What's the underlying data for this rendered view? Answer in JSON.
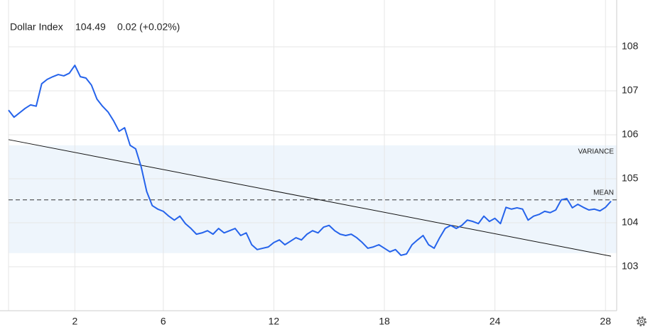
{
  "chart_data": {
    "type": "line",
    "title": "Dollar Index",
    "price": "104.49",
    "change": "0.02 (+0.02%)",
    "price_color": "#2962ff",
    "change_color": "#22ab3a",
    "color": "#2563eb",
    "categories": [
      null,
      null,
      null,
      null,
      null,
      null,
      null,
      null,
      null,
      null,
      null,
      null,
      "2",
      null,
      null,
      null,
      null,
      null,
      null,
      null,
      null,
      null,
      null,
      null,
      null,
      null,
      null,
      null,
      "6",
      null,
      null,
      null,
      null,
      null,
      null,
      null,
      null,
      null,
      null,
      null,
      null,
      null,
      null,
      null,
      null,
      null,
      null,
      null,
      "12",
      null,
      null,
      null,
      null,
      null,
      null,
      null,
      null,
      null,
      null,
      null,
      null,
      null,
      null,
      null,
      null,
      null,
      null,
      null,
      "18",
      null,
      null,
      null,
      null,
      null,
      null,
      null,
      null,
      null,
      null,
      null,
      null,
      null,
      null,
      null,
      null,
      null,
      null,
      null,
      "24",
      null,
      null,
      null,
      null,
      null,
      null,
      null,
      null,
      null,
      null,
      null,
      null,
      null,
      null,
      null,
      null,
      null,
      null,
      null,
      "28",
      null
    ],
    "values": [
      106.56,
      106.4,
      106.5,
      106.6,
      106.68,
      106.65,
      107.16,
      107.26,
      107.32,
      107.37,
      107.34,
      107.4,
      107.58,
      107.32,
      107.29,
      107.13,
      106.81,
      106.65,
      106.52,
      106.32,
      106.08,
      106.16,
      105.76,
      105.68,
      105.27,
      104.71,
      104.39,
      104.31,
      104.26,
      104.15,
      104.06,
      104.15,
      103.98,
      103.87,
      103.74,
      103.77,
      103.82,
      103.74,
      103.87,
      103.77,
      103.82,
      103.87,
      103.71,
      103.77,
      103.5,
      103.39,
      103.42,
      103.45,
      103.55,
      103.61,
      103.5,
      103.58,
      103.66,
      103.61,
      103.74,
      103.82,
      103.77,
      103.9,
      103.94,
      103.82,
      103.74,
      103.71,
      103.74,
      103.66,
      103.55,
      103.42,
      103.45,
      103.5,
      103.42,
      103.34,
      103.39,
      103.26,
      103.29,
      103.5,
      103.61,
      103.71,
      103.5,
      103.42,
      103.66,
      103.87,
      103.94,
      103.87,
      103.94,
      104.06,
      104.03,
      103.98,
      104.15,
      104.03,
      104.1,
      103.98,
      104.35,
      104.31,
      104.34,
      104.31,
      104.06,
      104.15,
      104.19,
      104.26,
      104.23,
      104.29,
      104.52,
      104.55,
      104.34,
      104.42,
      104.35,
      104.29,
      104.31,
      104.27,
      104.35,
      104.49
    ],
    "ylim": [
      102,
      109
    ],
    "yticks": [
      103,
      104,
      105,
      106,
      107,
      108
    ],
    "grid": true,
    "trend": {
      "start": 105.89,
      "end": 103.24
    },
    "variance": {
      "label": "VARIANCE",
      "low": 103.31,
      "high": 105.76
    },
    "mean": {
      "label": "MEAN",
      "value": 104.52
    }
  }
}
